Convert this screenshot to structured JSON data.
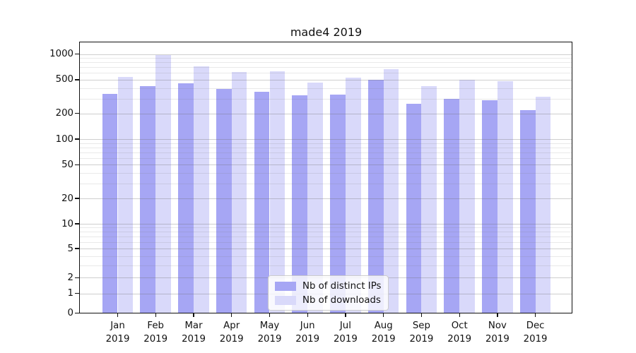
{
  "title": "made4 2019",
  "chart_data": {
    "type": "bar",
    "title": "made4 2019",
    "categories": [
      "Jan 2019",
      "Feb 2019",
      "Mar 2019",
      "Apr 2019",
      "May 2019",
      "Jun 2019",
      "Jul 2019",
      "Aug 2019",
      "Sep 2019",
      "Oct 2019",
      "Nov 2019",
      "Dec 2019"
    ],
    "x_tick_months": [
      "Jan",
      "Feb",
      "Mar",
      "Apr",
      "May",
      "Jun",
      "Jul",
      "Aug",
      "Sep",
      "Oct",
      "Nov",
      "Dec"
    ],
    "x_tick_year": "2019",
    "series": [
      {
        "name": "Nb of distinct IPs",
        "color": "#a6a6f4",
        "values": [
          343,
          423,
          451,
          387,
          361,
          328,
          334,
          496,
          262,
          298,
          288,
          220
        ]
      },
      {
        "name": "Nb of downloads",
        "color": "#d9d9fa",
        "values": [
          539,
          969,
          718,
          613,
          628,
          460,
          528,
          661,
          420,
          504,
          481,
          317
        ]
      }
    ],
    "xlabel": "",
    "ylabel": "",
    "yscale": "symlog",
    "ylim": [
      0,
      1380
    ],
    "y_ticks": [
      0,
      1,
      2,
      5,
      10,
      20,
      50,
      100,
      200,
      500,
      1000
    ],
    "y_minor_gridlines": [
      3,
      4,
      6,
      7,
      8,
      9,
      30,
      40,
      60,
      70,
      80,
      90,
      300,
      400,
      600,
      700,
      800,
      900
    ],
    "grid": "horizontal major and minor gridlines",
    "legend_position": "lower center"
  },
  "colors": {
    "background": "#ffffff",
    "text": "#111111",
    "axis": "#111111",
    "bar_distinct_ips": "#a6a6f4",
    "bar_downloads": "#d9d9fa",
    "grid_major": "#cfcfcf",
    "grid_minor": "#ebebeb"
  }
}
